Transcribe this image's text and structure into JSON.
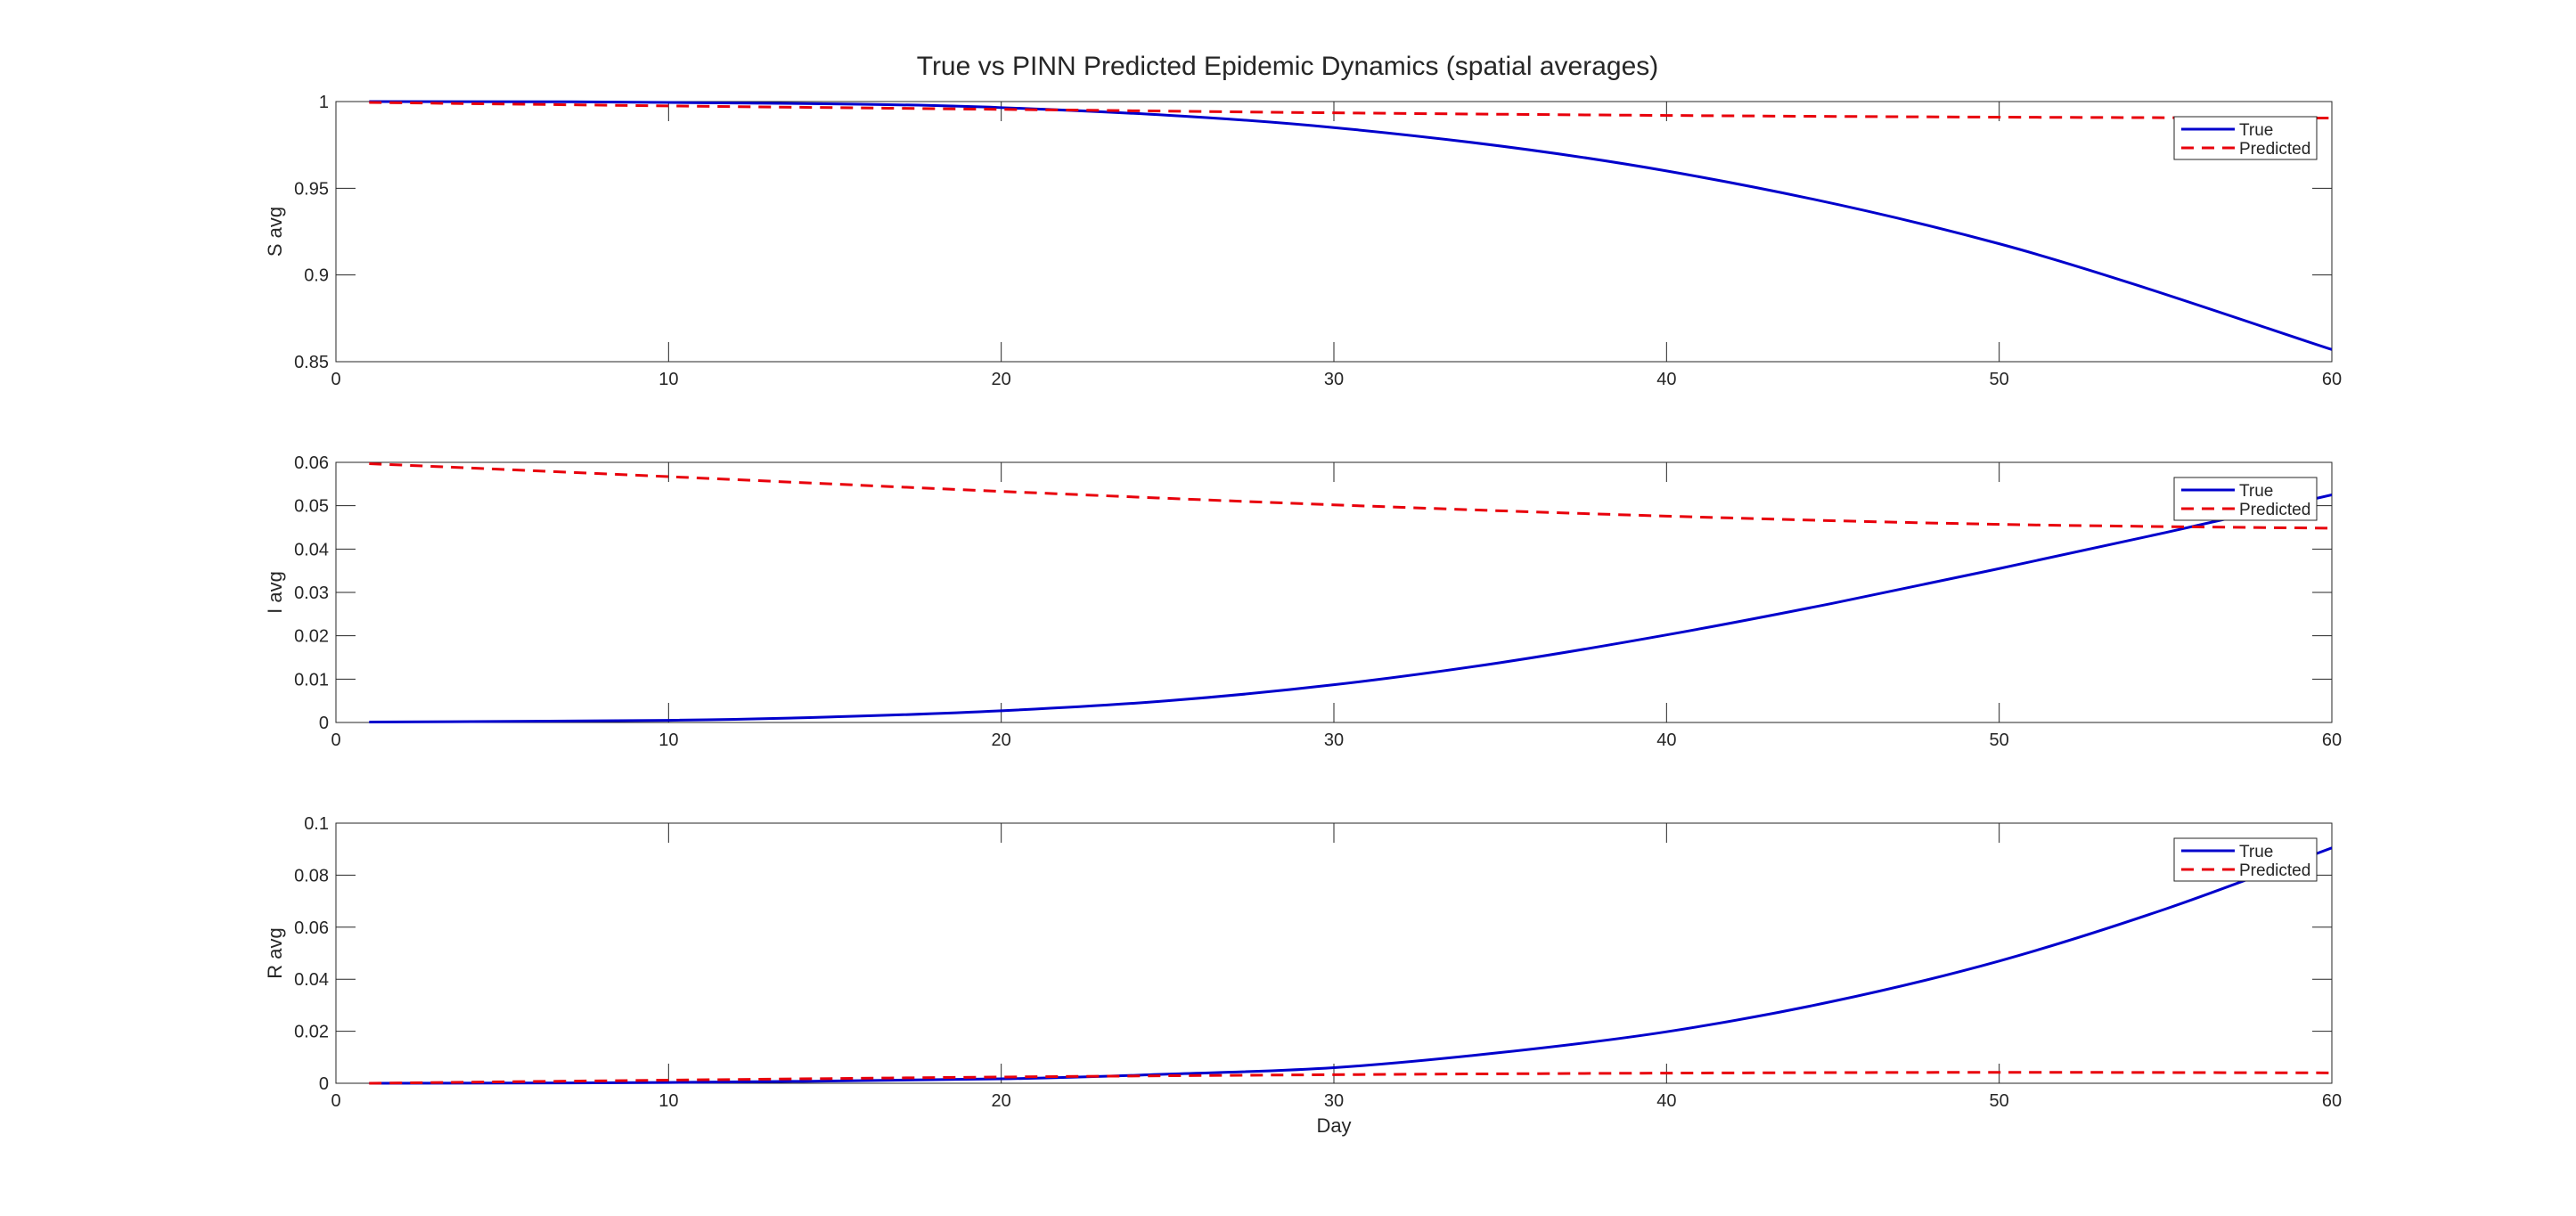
{
  "chart_data": {
    "type": "line",
    "title": "True vs PINN Predicted Epidemic Dynamics (spatial averages)",
    "xlabel": "Day",
    "xlim": [
      0,
      60
    ],
    "xticks": [
      0,
      10,
      20,
      30,
      40,
      50,
      60
    ],
    "grid": false,
    "legend_placement": "top-right",
    "colors": {
      "true": "#0000cc",
      "predicted": "#e8000b"
    },
    "subplots": [
      {
        "ylabel": "S avg",
        "ylim": [
          0.85,
          1
        ],
        "yticks": [
          0.85,
          0.9,
          0.95,
          1
        ],
        "ytick_labels": [
          "0.85",
          "0.9",
          "0.95",
          "1"
        ],
        "series": [
          {
            "name": "True",
            "style": "solid",
            "color": "#0000cc",
            "x": [
              1,
              10,
              20,
              30,
              40,
              50,
              60
            ],
            "y": [
              1.0,
              0.9995,
              0.9965,
              0.985,
              0.96,
              0.918,
              0.857
            ]
          },
          {
            "name": "Predicted",
            "style": "dashed",
            "color": "#e8000b",
            "x": [
              1,
              10,
              20,
              30,
              40,
              50,
              60
            ],
            "y": [
              0.9995,
              0.9975,
              0.9955,
              0.9935,
              0.992,
              0.991,
              0.9905
            ]
          }
        ]
      },
      {
        "ylabel": "I avg",
        "ylim": [
          0,
          0.06
        ],
        "yticks": [
          0,
          0.01,
          0.02,
          0.03,
          0.04,
          0.05,
          0.06
        ],
        "ytick_labels": [
          "0",
          "0.01",
          "0.02",
          "0.03",
          "0.04",
          "0.05",
          "0.06"
        ],
        "series": [
          {
            "name": "True",
            "style": "solid",
            "color": "#0000cc",
            "x": [
              1,
              10,
              15,
              20,
              25,
              30,
              35,
              40,
              45,
              50,
              55,
              60
            ],
            "y": [
              0.0001,
              0.0005,
              0.0013,
              0.0027,
              0.005,
              0.0087,
              0.0138,
              0.0202,
              0.0275,
              0.0355,
              0.0438,
              0.0525
            ]
          },
          {
            "name": "Predicted",
            "style": "dashed",
            "color": "#e8000b",
            "x": [
              1,
              10,
              20,
              30,
              40,
              50,
              60
            ],
            "y": [
              0.0597,
              0.0567,
              0.0533,
              0.0502,
              0.0476,
              0.0457,
              0.0448
            ]
          }
        ]
      },
      {
        "ylabel": "R avg",
        "ylim": [
          0,
          0.1
        ],
        "yticks": [
          0,
          0.02,
          0.04,
          0.06,
          0.08,
          0.1
        ],
        "ytick_labels": [
          "0",
          "0.02",
          "0.04",
          "0.06",
          "0.08",
          "0.1"
        ],
        "series": [
          {
            "name": "True",
            "style": "solid",
            "color": "#0000cc",
            "x": [
              1,
              10,
              20,
              25,
              30,
              35,
              40,
              45,
              50,
              55,
              60
            ],
            "y": [
              0.0,
              0.0003,
              0.0017,
              0.0035,
              0.006,
              0.0118,
              0.0198,
              0.0315,
              0.047,
              0.067,
              0.0905
            ]
          },
          {
            "name": "Predicted",
            "style": "dashed",
            "color": "#e8000b",
            "x": [
              1,
              10,
              20,
              30,
              40,
              50,
              60
            ],
            "y": [
              0.0,
              0.0012,
              0.0024,
              0.0033,
              0.0039,
              0.0042,
              0.004
            ]
          }
        ]
      }
    ]
  }
}
